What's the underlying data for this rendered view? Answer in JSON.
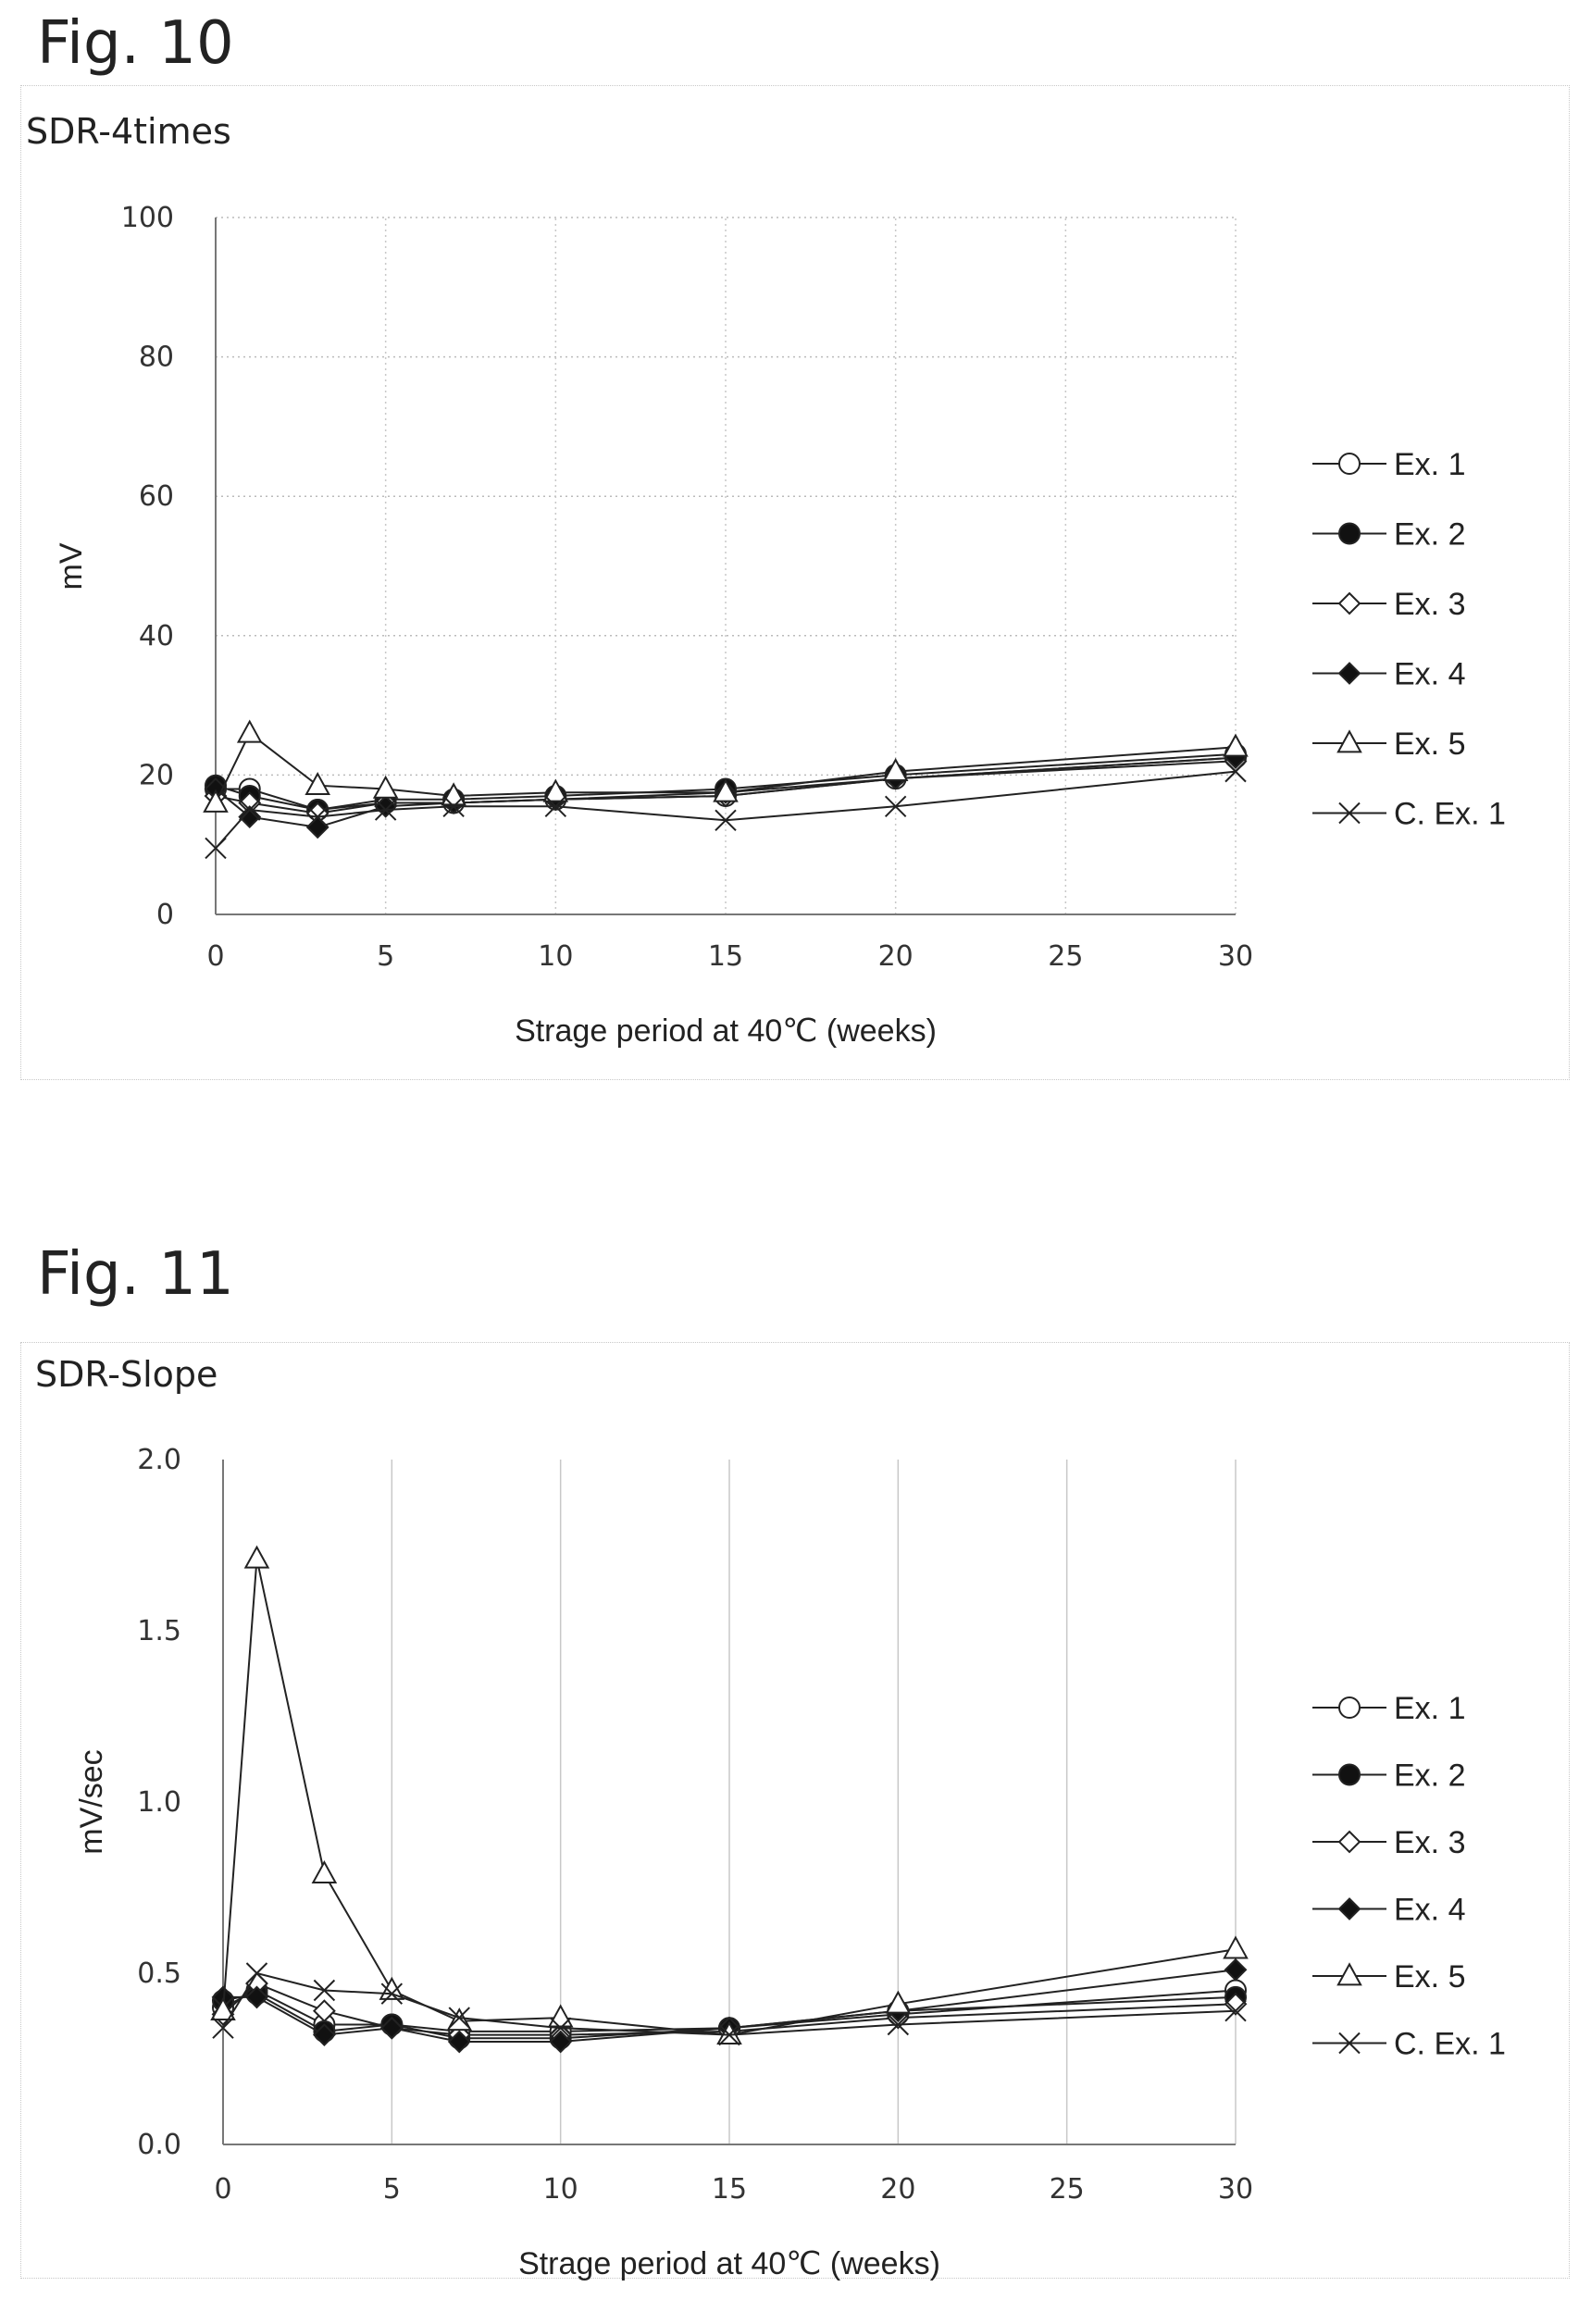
{
  "charts": [
    {
      "fig_label": "Fig. 10",
      "title": "SDR-4times",
      "chart_data": {
        "type": "line",
        "title": "SDR-4times",
        "xlabel": "Strage period at 40℃ (weeks)",
        "ylabel": "mV",
        "x": [
          0,
          1,
          3,
          5,
          7,
          10,
          15,
          20,
          30
        ],
        "xticks": [
          0,
          5,
          10,
          15,
          20,
          25,
          30
        ],
        "yticks": [
          0,
          20,
          40,
          60,
          80,
          100
        ],
        "ytick_labels": [
          "0",
          "20",
          "40",
          "60",
          "80",
          "100"
        ],
        "xlim": [
          0,
          30
        ],
        "ylim": [
          0,
          100
        ],
        "grid": "vertical and horizontal dotted",
        "legend": "right",
        "series": [
          {
            "name": "Ex. 1",
            "marker": "open-circle",
            "values": [
              18,
              18,
              15,
              16,
              16,
              16.5,
              17,
              19.5,
              22.5
            ]
          },
          {
            "name": "Ex. 2",
            "marker": "filled-circle",
            "values": [
              18.5,
              17,
              15,
              16.5,
              16.5,
              17,
              18,
              20,
              23
            ]
          },
          {
            "name": "Ex. 3",
            "marker": "open-diamond",
            "values": [
              17,
              16,
              14.5,
              16,
              16,
              16.5,
              17,
              19.5,
              22
            ]
          },
          {
            "name": "Ex. 4",
            "marker": "filled-diamond",
            "values": [
              18,
              14,
              12.5,
              15.5,
              16,
              16.5,
              17.5,
              19.5,
              22.5
            ]
          },
          {
            "name": "Ex. 5",
            "marker": "open-triangle",
            "values": [
              16,
              26,
              18.5,
              18,
              17,
              17.5,
              17.5,
              20.5,
              24
            ]
          },
          {
            "name": "C. Ex. 1",
            "marker": "cross",
            "values": [
              9.5,
              15,
              14,
              15,
              15.5,
              15.5,
              13.5,
              15.5,
              20.5
            ]
          }
        ]
      }
    },
    {
      "fig_label": "Fig. 11",
      "title": "SDR-Slope",
      "chart_data": {
        "type": "line",
        "title": "SDR-Slope",
        "xlabel": "Strage period at 40℃ (weeks)",
        "ylabel": "mV/sec",
        "x": [
          0,
          1,
          3,
          5,
          7,
          10,
          15,
          20,
          30
        ],
        "xticks": [
          0,
          5,
          10,
          15,
          20,
          25,
          30
        ],
        "yticks": [
          0,
          0.5,
          1.0,
          1.5,
          2.0
        ],
        "ytick_labels": [
          "0.0",
          "0.5",
          "1.0",
          "1.5",
          "2.0"
        ],
        "xlim": [
          0,
          30
        ],
        "ylim": [
          0,
          2.0
        ],
        "grid": "vertical solid, horizontal none",
        "legend": "right",
        "series": [
          {
            "name": "Ex. 1",
            "marker": "open-circle",
            "values": [
              0.4,
              0.45,
              0.35,
              0.35,
              0.33,
              0.33,
              0.34,
              0.38,
              0.45
            ]
          },
          {
            "name": "Ex. 2",
            "marker": "filled-circle",
            "values": [
              0.42,
              0.44,
              0.33,
              0.35,
              0.31,
              0.31,
              0.34,
              0.39,
              0.43
            ]
          },
          {
            "name": "Ex. 3",
            "marker": "open-diamond",
            "values": [
              0.38,
              0.47,
              0.39,
              0.34,
              0.32,
              0.32,
              0.33,
              0.37,
              0.41
            ]
          },
          {
            "name": "Ex. 4",
            "marker": "filled-diamond",
            "values": [
              0.43,
              0.43,
              0.32,
              0.34,
              0.3,
              0.3,
              0.34,
              0.39,
              0.51
            ]
          },
          {
            "name": "Ex. 5",
            "marker": "open-triangle",
            "values": [
              0.39,
              1.71,
              0.79,
              0.45,
              0.36,
              0.37,
              0.32,
              0.41,
              0.57
            ]
          },
          {
            "name": "C. Ex. 1",
            "marker": "cross",
            "values": [
              0.34,
              0.5,
              0.45,
              0.44,
              0.37,
              0.34,
              0.32,
              0.35,
              0.39
            ]
          }
        ]
      }
    }
  ]
}
